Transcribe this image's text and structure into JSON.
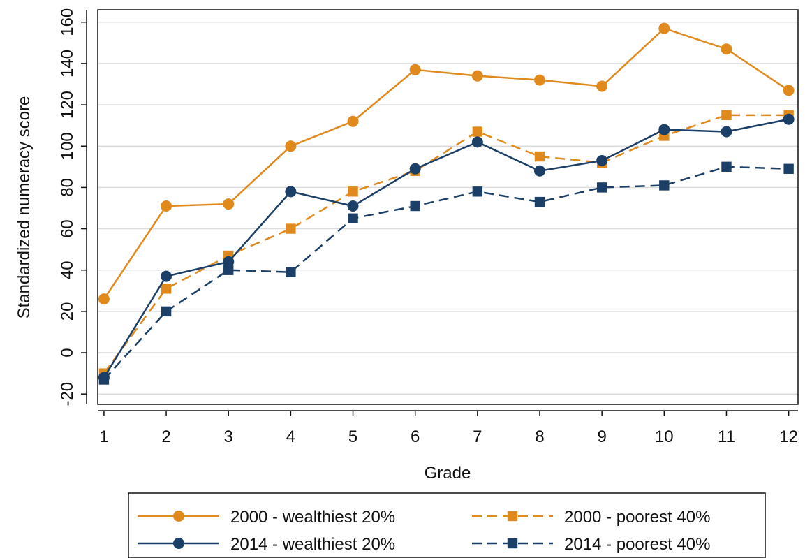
{
  "chart_data": {
    "type": "line",
    "xlabel": "Grade",
    "ylabel": "Standardized numeracy score",
    "x": [
      1,
      2,
      3,
      4,
      5,
      6,
      7,
      8,
      9,
      10,
      11,
      12
    ],
    "xticks": [
      "1",
      "2",
      "3",
      "4",
      "5",
      "6",
      "7",
      "8",
      "9",
      "10",
      "11",
      "12"
    ],
    "yticks": [
      "-20",
      "0",
      "20",
      "40",
      "60",
      "80",
      "100",
      "120",
      "140",
      "160"
    ],
    "xlim": [
      0.9,
      12.15
    ],
    "ylim": [
      -25,
      166
    ],
    "grid": "horizontal",
    "legend_position": "bottom",
    "series": [
      {
        "name": "2000 - wealthiest 20%",
        "color": "#e0891c",
        "marker": "circle",
        "line_style": "solid",
        "values": [
          26,
          71,
          72,
          100,
          112,
          137,
          134,
          132,
          129,
          157,
          147,
          127
        ]
      },
      {
        "name": "2000 - poorest 40%",
        "color": "#e0891c",
        "marker": "square",
        "line_style": "dashed",
        "values": [
          -10,
          31,
          47,
          60,
          78,
          88,
          107,
          95,
          92,
          105,
          115,
          115
        ]
      },
      {
        "name": "2014 - wealthiest 20%",
        "color": "#1b3f66",
        "marker": "circle",
        "line_style": "solid",
        "values": [
          -12,
          37,
          44,
          78,
          71,
          89,
          102,
          88,
          93,
          108,
          107,
          113
        ]
      },
      {
        "name": "2014 - poorest 40%",
        "color": "#1b3f66",
        "marker": "square",
        "line_style": "dashed",
        "values": [
          -13,
          20,
          40,
          39,
          65,
          71,
          78,
          73,
          80,
          81,
          90,
          89
        ]
      }
    ]
  }
}
